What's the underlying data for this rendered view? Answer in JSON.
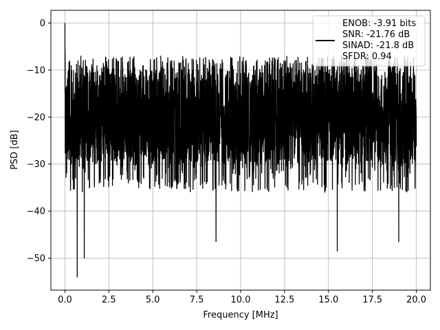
{
  "chart_data": {
    "type": "line",
    "xlabel": "Frequency [MHz]",
    "ylabel": "PSD [dB]",
    "xlim": [
      -0.8,
      20.8
    ],
    "ylim": [
      -56.8,
      2.7
    ],
    "xticks": [
      0.0,
      2.5,
      5.0,
      7.5,
      10.0,
      12.5,
      15.0,
      17.5,
      20.0
    ],
    "xtick_labels": [
      "0.0",
      "2.5",
      "5.0",
      "7.5",
      "10.0",
      "12.5",
      "15.0",
      "17.5",
      "20.0"
    ],
    "yticks": [
      0,
      -10,
      -20,
      -30,
      -40,
      -50
    ],
    "ytick_labels": [
      "0",
      "−10",
      "−20",
      "−30",
      "−40",
      "−50"
    ],
    "grid": true,
    "legend_position": "top-right",
    "series": [
      {
        "name": "ENOB: -3.91 bits\nSNR: -21.76 dB\nSINAD: -21.8 dB\nSFDR: 0.94",
        "color": "#000000",
        "x_range": [
          0,
          20
        ],
        "peak": {
          "x": 0.0,
          "y": 0
        },
        "typical_upper": -10,
        "typical_lower": -30,
        "notable_minima": [
          {
            "x": 0.7,
            "y": -54
          },
          {
            "x": 1.1,
            "y": -50
          },
          {
            "x": 8.6,
            "y": -46.5
          },
          {
            "x": 15.5,
            "y": -48.5
          },
          {
            "x": 19.0,
            "y": -46.5
          }
        ]
      }
    ]
  }
}
